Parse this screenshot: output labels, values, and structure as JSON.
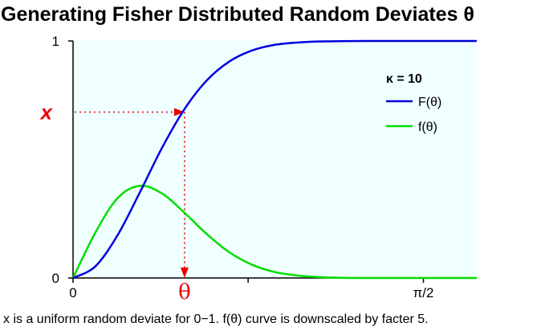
{
  "chart_data": {
    "type": "line",
    "title": "Generating Fisher Distributed Random Deviates θ",
    "caption": "x is a uniform random deviate for 0−1. f(θ) curve is downscaled by facter 5.",
    "kappa": 10,
    "f_scale": 0.2,
    "xlim": [
      0,
      1.81
    ],
    "ylim": [
      0,
      1
    ],
    "x_ticks": [
      {
        "value": 0,
        "label": "0"
      },
      {
        "value": 0.785,
        "label": ""
      },
      {
        "value": 1.5708,
        "label": "π/2"
      }
    ],
    "y_ticks": [
      {
        "value": 0,
        "label": "0"
      },
      {
        "value": 1,
        "label": "1"
      }
    ],
    "legend": {
      "title": "κ = 10",
      "position": "top-right",
      "entries": [
        {
          "label": "F(θ)",
          "color": "#0000dd"
        },
        {
          "label": "f(θ)",
          "color": "#00dd00"
        }
      ]
    },
    "series": [
      {
        "name": "F(θ)",
        "color": "#0000dd",
        "x": [
          0,
          0.1,
          0.2,
          0.3,
          0.4,
          0.5,
          0.6,
          0.7,
          0.8,
          0.9,
          1.0,
          1.1,
          1.2,
          1.3,
          1.4,
          1.5,
          1.6,
          1.7,
          1.81
        ],
        "y": [
          0,
          0.049,
          0.181,
          0.362,
          0.551,
          0.713,
          0.834,
          0.913,
          0.959,
          0.983,
          0.993,
          0.998,
          0.999,
          1.0,
          1.0,
          1.0,
          1.0,
          1.0,
          1.0
        ]
      },
      {
        "name": "f(θ)",
        "color": "#00dd00",
        "x": [
          0,
          0.1,
          0.2,
          0.3,
          0.4,
          0.5,
          0.6,
          0.7,
          0.8,
          0.9,
          1.0,
          1.1,
          1.2,
          1.3,
          1.4,
          1.5,
          1.6,
          1.7,
          1.81
        ],
        "y": [
          0,
          0.191,
          0.337,
          0.389,
          0.356,
          0.275,
          0.185,
          0.109,
          0.057,
          0.026,
          0.011,
          0.004,
          0.001,
          0.0,
          0.0,
          0.0,
          0.0,
          0.0,
          0.0
        ]
      }
    ],
    "annotations": {
      "x_label": "x",
      "theta_label": "θ",
      "x_value": 0.7,
      "theta_value": 0.5,
      "color": "#ee0000"
    },
    "plot_background": "#f0ffff",
    "grid": false
  }
}
